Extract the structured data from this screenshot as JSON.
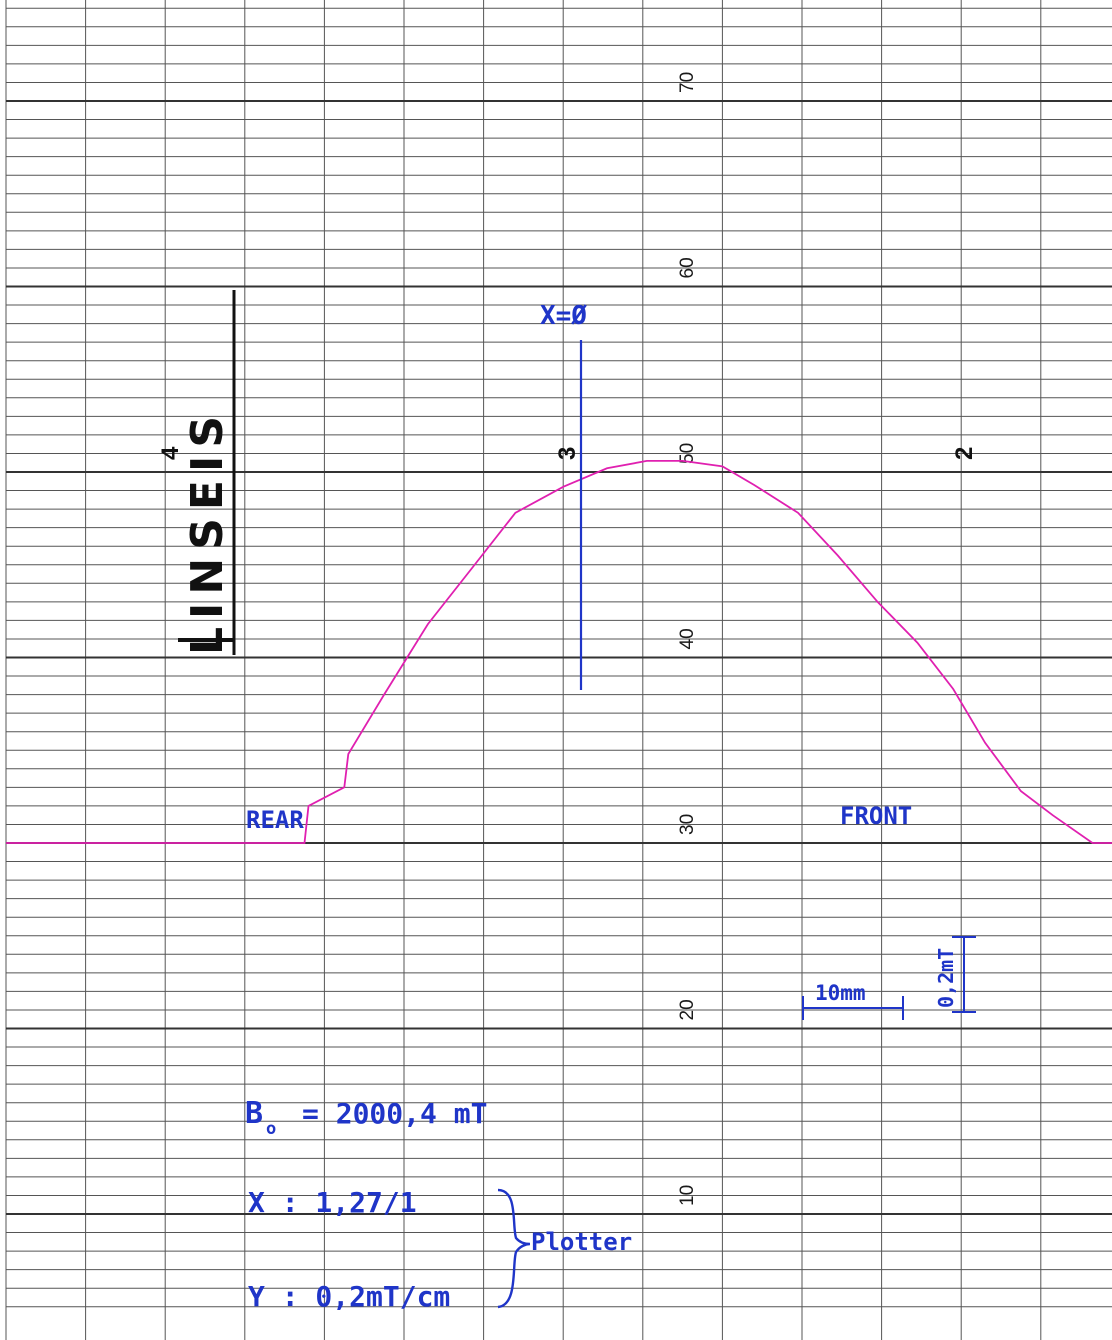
{
  "chart_data": {
    "type": "line",
    "title": "",
    "xlabel": "",
    "ylabel": "",
    "y_tick_labels": [
      "10",
      "20",
      "30",
      "40",
      "50",
      "60",
      "70"
    ],
    "ylim": [
      5,
      75
    ],
    "grid": true,
    "series": [
      {
        "name": "",
        "color": "#e020b0",
        "x": [
          0,
          7.5,
          7.6,
          8.5,
          8.6,
          9.5,
          10.6,
          11.7,
          12.8,
          14.0,
          15.1,
          16.1,
          17.0,
          18.0,
          18.8,
          19.9,
          20.9,
          21.9,
          22.9,
          23.8,
          24.6,
          25.5,
          26.3,
          27.3,
          32.0
        ],
        "y": [
          30,
          30,
          32,
          33,
          34.8,
          38,
          41.8,
          44.8,
          47.8,
          49.2,
          50.2,
          50.6,
          50.6,
          50.3,
          49.3,
          47.8,
          45.5,
          43.0,
          40.8,
          38.3,
          35.4,
          32.8,
          31.5,
          30,
          30
        ]
      }
    ],
    "panel_numbers": [
      "4",
      "3",
      "2"
    ],
    "annotations": {
      "x_zero": "X=Ø",
      "rear": "REAR",
      "front": "FRONT",
      "scale_x": "10mm",
      "scale_y": "0,2mT",
      "b_symbol": "B",
      "b_subscript": "o",
      "b_value": "= 2000,4 mT",
      "x_setting": "X : 1,27/1",
      "y_setting": "Y : 0,2mT/cm",
      "plotter": "Plotter"
    },
    "logo": "LINSEIS"
  },
  "colors": {
    "trace": "#e020b0",
    "handwriting": "#1f35c8",
    "grid_major": "#333333",
    "grid_minor": "#555555"
  }
}
